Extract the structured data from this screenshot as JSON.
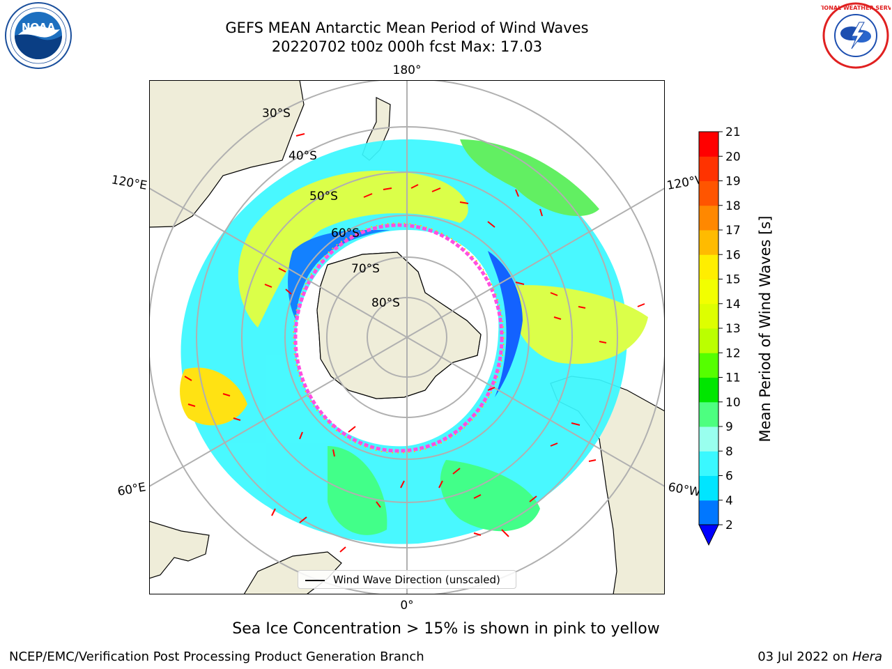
{
  "header": {
    "title_line1": "GEFS MEAN Antarctic Mean Period of Wind Waves",
    "title_line2": "20220702 t00z 000h fcst   Max: 17.03"
  },
  "logos": {
    "left": {
      "name": "NOAA",
      "ring_text": "NATIONAL OCEANIC AND ATMOSPHERIC ADMINISTRATION · U.S. DEPARTMENT OF COMMERCE"
    },
    "right": {
      "name": "NATIONAL WEATHER SERVICE"
    }
  },
  "map": {
    "projection": "South Polar Stereographic",
    "longitude_labels": {
      "top": "180°",
      "bottom": "0°",
      "left_upper": "120°E",
      "left_lower": "60°E",
      "right_upper": "120°W",
      "right_lower": "60°W"
    },
    "latitude_labels": [
      "30°S",
      "40°S",
      "50°S",
      "60°S",
      "70°S",
      "80°S"
    ],
    "colors": {
      "land": "#efedd9",
      "ocean_no_data": "#ffffff",
      "grid": "#b0b0b0",
      "arrows": "#ff0000",
      "ice_edge_pink": "#ff4fe0",
      "ice_edge_yellow": "#ffd200"
    }
  },
  "legend": {
    "entry": "Wind Wave Direction (unscaled)"
  },
  "colorbar": {
    "label": "Mean Period of Wind Waves [s]",
    "ticks": [
      "21",
      "20",
      "19",
      "18",
      "17",
      "16",
      "15",
      "14",
      "13",
      "12",
      "11",
      "10",
      "9",
      "8",
      "6",
      "4",
      "2"
    ],
    "bands": [
      {
        "from": 2,
        "to": 4,
        "color": "#0077ff"
      },
      {
        "from": 4,
        "to": 6,
        "color": "#00e5ff"
      },
      {
        "from": 6,
        "to": 8,
        "color": "#3af8ff"
      },
      {
        "from": 8,
        "to": 9,
        "color": "#99ffee"
      },
      {
        "from": 9,
        "to": 10,
        "color": "#4dff80"
      },
      {
        "from": 10,
        "to": 11,
        "color": "#00e600"
      },
      {
        "from": 11,
        "to": 12,
        "color": "#55ff00"
      },
      {
        "from": 12,
        "to": 13,
        "color": "#bbff00"
      },
      {
        "from": 13,
        "to": 14,
        "color": "#ddff00"
      },
      {
        "from": 14,
        "to": 15,
        "color": "#f2ff00"
      },
      {
        "from": 15,
        "to": 16,
        "color": "#ffee00"
      },
      {
        "from": 16,
        "to": 17,
        "color": "#ffbb00"
      },
      {
        "from": 17,
        "to": 18,
        "color": "#ff8800"
      },
      {
        "from": 18,
        "to": 19,
        "color": "#ff5500"
      },
      {
        "from": 19,
        "to": 20,
        "color": "#ff3300"
      },
      {
        "from": 20,
        "to": 21,
        "color": "#ff0000"
      }
    ],
    "under_color": "#0000ff"
  },
  "notes": {
    "ice": "Sea Ice Concentration > 15% is shown in pink to yellow"
  },
  "footer": {
    "left": "NCEP/EMC/Verification Post Processing Product Generation Branch",
    "right_prefix": "03 Jul 2022 on ",
    "right_machine": "Hera"
  }
}
